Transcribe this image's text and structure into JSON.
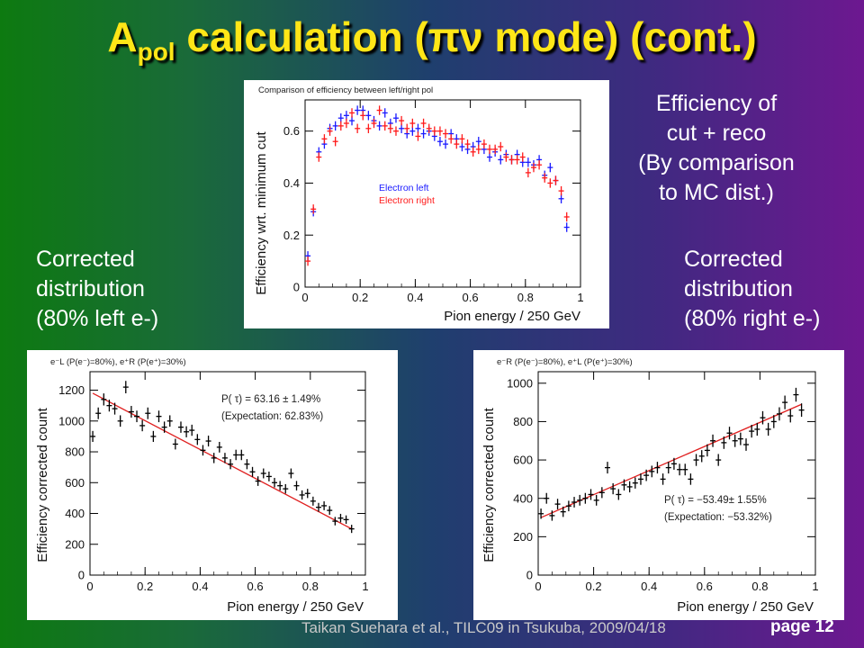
{
  "slide": {
    "title_main": "A",
    "title_sub": "pol",
    "title_rest": " calculation (πν mode) (cont.)",
    "title_color": "#ffe617"
  },
  "notes": {
    "efficiency": [
      "Efficiency of",
      "cut + reco",
      "(By comparison",
      "to MC dist.)"
    ],
    "left": [
      "Corrected",
      "distribution",
      "(80% left e-)"
    ],
    "right": [
      "Corrected",
      "distribution",
      "(80% right e-)"
    ]
  },
  "footer": {
    "citation": "Taikan Suehara et al., TILC09 in Tsukuba, 2009/04/18",
    "page": "page 12"
  },
  "colors": {
    "blue": "#1a1aff",
    "red": "#ff1a1a",
    "fit": "#e02020"
  },
  "chart_data": [
    {
      "type": "scatter",
      "title": "Comparison of efficiency between left/right pol",
      "xlabel": "Pion energy / 250 GeV",
      "ylabel": "Efficiency wrt. minimum cut",
      "xlim": [
        0,
        1
      ],
      "ylim": [
        0,
        0.72
      ],
      "xticks": [
        "0",
        "0.2",
        "0.4",
        "0.6",
        "0.8",
        "1"
      ],
      "yticks": [
        "0",
        "0.2",
        "0.4",
        "0.6"
      ],
      "legend_placement": "center",
      "series": [
        {
          "name": "Electron left",
          "color": "#1a1aff",
          "x": [
            0.01,
            0.03,
            0.05,
            0.07,
            0.09,
            0.11,
            0.13,
            0.15,
            0.17,
            0.19,
            0.21,
            0.23,
            0.25,
            0.27,
            0.29,
            0.31,
            0.33,
            0.35,
            0.37,
            0.39,
            0.41,
            0.43,
            0.45,
            0.47,
            0.49,
            0.51,
            0.53,
            0.55,
            0.57,
            0.59,
            0.61,
            0.63,
            0.65,
            0.67,
            0.69,
            0.71,
            0.73,
            0.75,
            0.77,
            0.79,
            0.81,
            0.83,
            0.85,
            0.87,
            0.89,
            0.91,
            0.93,
            0.95
          ],
          "y": [
            0.12,
            0.29,
            0.52,
            0.55,
            0.61,
            0.62,
            0.65,
            0.66,
            0.64,
            0.68,
            0.68,
            0.66,
            0.64,
            0.62,
            0.67,
            0.63,
            0.65,
            0.61,
            0.59,
            0.6,
            0.61,
            0.59,
            0.6,
            0.58,
            0.56,
            0.55,
            0.59,
            0.57,
            0.54,
            0.53,
            0.54,
            0.56,
            0.53,
            0.5,
            0.52,
            0.49,
            0.51,
            0.49,
            0.51,
            0.48,
            0.48,
            0.47,
            0.49,
            0.43,
            0.46,
            0.41,
            0.34,
            0.23
          ]
        },
        {
          "name": "Electron right",
          "color": "#ff1a1a",
          "x": [
            0.01,
            0.03,
            0.05,
            0.07,
            0.09,
            0.11,
            0.13,
            0.15,
            0.17,
            0.19,
            0.21,
            0.23,
            0.25,
            0.27,
            0.29,
            0.31,
            0.33,
            0.35,
            0.37,
            0.39,
            0.41,
            0.43,
            0.45,
            0.47,
            0.49,
            0.51,
            0.53,
            0.55,
            0.57,
            0.59,
            0.61,
            0.63,
            0.65,
            0.67,
            0.69,
            0.71,
            0.73,
            0.75,
            0.77,
            0.79,
            0.81,
            0.83,
            0.85,
            0.87,
            0.89,
            0.91,
            0.93,
            0.95
          ],
          "y": [
            0.1,
            0.3,
            0.5,
            0.57,
            0.6,
            0.56,
            0.62,
            0.63,
            0.67,
            0.61,
            0.66,
            0.61,
            0.63,
            0.68,
            0.62,
            0.61,
            0.6,
            0.64,
            0.61,
            0.63,
            0.58,
            0.63,
            0.61,
            0.6,
            0.6,
            0.59,
            0.57,
            0.55,
            0.57,
            0.55,
            0.52,
            0.53,
            0.55,
            0.53,
            0.53,
            0.54,
            0.5,
            0.49,
            0.49,
            0.5,
            0.44,
            0.46,
            0.47,
            0.42,
            0.4,
            0.41,
            0.37,
            0.27
          ]
        }
      ]
    },
    {
      "type": "scatter",
      "title": "e⁻L (P(e⁻)=80%), e⁺R (P(e⁺)=30%)",
      "xlabel": "Pion energy / 250 GeV",
      "ylabel": "Efficiency corrected count",
      "xlim": [
        0,
        1
      ],
      "ylim": [
        0,
        1320
      ],
      "xticks": [
        "0",
        "0.2",
        "0.4",
        "0.6",
        "0.8",
        "1"
      ],
      "yticks": [
        "0",
        "200",
        "400",
        "600",
        "800",
        "1000",
        "1200"
      ],
      "annotation": [
        "P( τ) = 63.16 ±  1.49%",
        "(Expectation: 62.83%)"
      ],
      "fit_line": {
        "x": [
          0.01,
          0.95
        ],
        "y": [
          1180,
          300
        ]
      },
      "series": [
        {
          "name": "",
          "x": [
            0.01,
            0.03,
            0.05,
            0.07,
            0.09,
            0.11,
            0.13,
            0.15,
            0.17,
            0.19,
            0.21,
            0.23,
            0.25,
            0.27,
            0.29,
            0.31,
            0.33,
            0.35,
            0.37,
            0.39,
            0.41,
            0.43,
            0.45,
            0.47,
            0.49,
            0.51,
            0.53,
            0.55,
            0.57,
            0.59,
            0.61,
            0.63,
            0.65,
            0.67,
            0.69,
            0.71,
            0.73,
            0.75,
            0.77,
            0.79,
            0.81,
            0.83,
            0.85,
            0.87,
            0.89,
            0.91,
            0.93,
            0.95
          ],
          "y": [
            900,
            1050,
            1140,
            1100,
            1080,
            1000,
            1220,
            1060,
            1030,
            970,
            1050,
            900,
            1030,
            960,
            1000,
            850,
            960,
            930,
            940,
            880,
            810,
            870,
            760,
            830,
            760,
            720,
            780,
            780,
            720,
            670,
            610,
            660,
            640,
            600,
            580,
            560,
            660,
            580,
            520,
            530,
            480,
            440,
            450,
            420,
            350,
            370,
            360,
            300
          ]
        }
      ]
    },
    {
      "type": "scatter",
      "title": "e⁻R (P(e⁻)=80%), e⁺L (P(e⁺)=30%)",
      "xlabel": "Pion energy / 250 GeV",
      "ylabel": "Efficiency corrected count",
      "xlim": [
        0,
        1
      ],
      "ylim": [
        0,
        1060
      ],
      "xticks": [
        "0",
        "0.2",
        "0.4",
        "0.6",
        "0.8",
        "1"
      ],
      "yticks": [
        "0",
        "200",
        "400",
        "600",
        "800",
        "1000"
      ],
      "annotation": [
        "P( τ) = −53.49±  1.55%",
        "(Expectation: −53.32%)"
      ],
      "fit_line": {
        "x": [
          0.01,
          0.95
        ],
        "y": [
          300,
          890
        ]
      },
      "series": [
        {
          "name": "",
          "x": [
            0.01,
            0.03,
            0.05,
            0.07,
            0.09,
            0.11,
            0.13,
            0.15,
            0.17,
            0.19,
            0.21,
            0.23,
            0.25,
            0.27,
            0.29,
            0.31,
            0.33,
            0.35,
            0.37,
            0.39,
            0.41,
            0.43,
            0.45,
            0.47,
            0.49,
            0.51,
            0.53,
            0.55,
            0.57,
            0.59,
            0.61,
            0.63,
            0.65,
            0.67,
            0.69,
            0.71,
            0.73,
            0.75,
            0.77,
            0.79,
            0.81,
            0.83,
            0.85,
            0.87,
            0.89,
            0.91,
            0.93,
            0.95
          ],
          "y": [
            320,
            400,
            310,
            370,
            330,
            360,
            380,
            390,
            400,
            420,
            390,
            430,
            560,
            450,
            420,
            470,
            460,
            480,
            500,
            520,
            540,
            560,
            500,
            560,
            580,
            550,
            550,
            500,
            600,
            620,
            650,
            700,
            600,
            690,
            740,
            700,
            710,
            680,
            750,
            760,
            820,
            760,
            800,
            840,
            900,
            830,
            940,
            860
          ]
        }
      ]
    }
  ]
}
